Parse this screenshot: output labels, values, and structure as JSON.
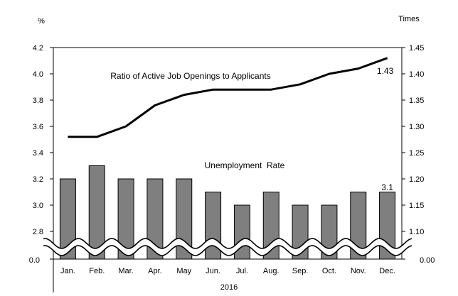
{
  "chart_data": {
    "type": "bar",
    "categories": [
      "Jan.",
      "Feb.",
      "Mar.",
      "Apr.",
      "May",
      "Jun.",
      "Jul.",
      "Aug.",
      "Sep.",
      "Oct.",
      "Nov.",
      "Dec."
    ],
    "x_group_label": "2016",
    "left_axis": {
      "unit": "%",
      "ticks": [
        "4.2",
        "4.0",
        "3.8",
        "3.6",
        "3.4",
        "3.2",
        "3.0",
        "2.8"
      ],
      "tick_values": [
        4.2,
        4.0,
        3.8,
        3.6,
        3.4,
        3.2,
        3.0,
        2.8
      ],
      "break_label": "0.0",
      "range": [
        2.8,
        4.2
      ],
      "break": true
    },
    "right_axis": {
      "unit": "Times",
      "ticks": [
        "1.45",
        "1.40",
        "1.35",
        "1.30",
        "1.25",
        "1.20",
        "1.15",
        "1.10"
      ],
      "tick_values": [
        1.45,
        1.4,
        1.35,
        1.3,
        1.25,
        1.2,
        1.15,
        1.1
      ],
      "break_label": "0.00",
      "range": [
        1.1,
        1.45
      ],
      "break": true
    },
    "series": [
      {
        "name": "Unemployment  Rate",
        "kind": "bar",
        "axis": "left",
        "values": [
          3.2,
          3.3,
          3.2,
          3.2,
          3.2,
          3.1,
          3.0,
          3.1,
          3.0,
          3.0,
          3.1,
          3.1
        ],
        "end_label": "3.1",
        "color": "#7f7f7f"
      },
      {
        "name": "Ratio of Active Job Openings to Applicants",
        "kind": "line",
        "axis": "right",
        "values": [
          1.28,
          1.28,
          1.3,
          1.34,
          1.36,
          1.37,
          1.37,
          1.37,
          1.38,
          1.4,
          1.41,
          1.43
        ],
        "end_label": "1.43",
        "color": "#000000"
      }
    ],
    "grid": false,
    "legend": "none"
  }
}
